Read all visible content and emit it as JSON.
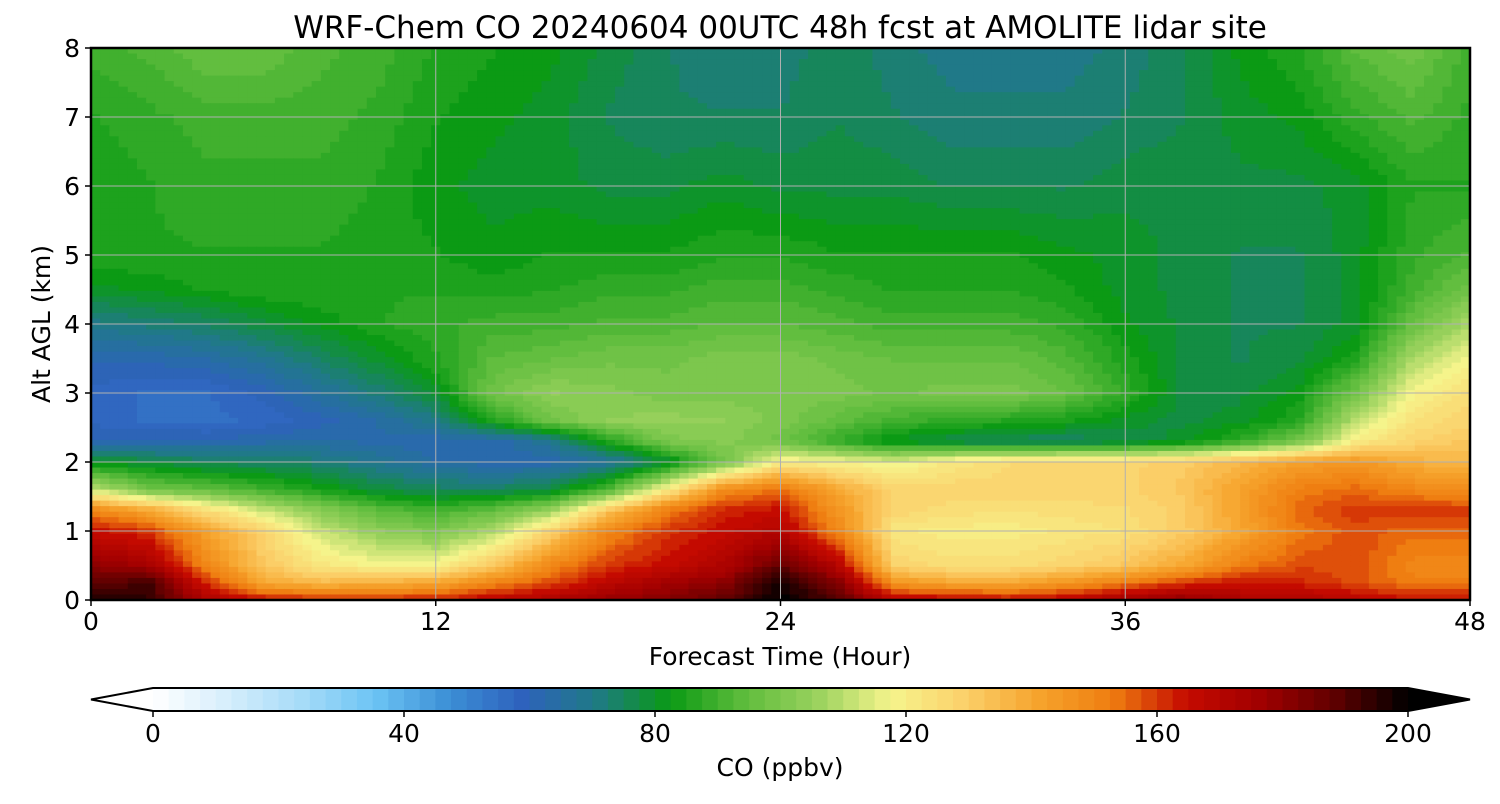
{
  "chart_data": {
    "type": "heatmap",
    "title": "WRF-Chem CO  20240604 00UTC 48h fcst at AMOLITE lidar site",
    "xlabel": "Forecast Time (Hour)",
    "ylabel": "Alt AGL (km)",
    "xlim": [
      0,
      48
    ],
    "ylim": [
      0,
      8
    ],
    "x_ticks": [
      0,
      12,
      24,
      36,
      48
    ],
    "y_ticks": [
      0,
      1,
      2,
      3,
      4,
      5,
      6,
      7,
      8
    ],
    "grid": true,
    "x": [
      0,
      2,
      4,
      6,
      8,
      10,
      12,
      14,
      16,
      18,
      20,
      22,
      24,
      26,
      28,
      30,
      32,
      34,
      36,
      38,
      40,
      42,
      44,
      46,
      48
    ],
    "y": [
      0,
      0.25,
      0.5,
      1,
      1.3,
      1.6,
      2,
      2.3,
      2.6,
      3,
      3.5,
      4,
      4.5,
      5,
      6,
      7,
      8
    ],
    "z": [
      [
        195,
        195,
        172,
        165,
        162,
        162,
        163,
        168,
        172,
        178,
        182,
        188,
        200,
        190,
        168,
        168,
        165,
        168,
        175,
        180,
        172,
        172,
        168,
        165,
        165
      ],
      [
        188,
        192,
        162,
        140,
        135,
        138,
        140,
        150,
        158,
        168,
        175,
        180,
        198,
        182,
        145,
        140,
        140,
        145,
        152,
        160,
        165,
        162,
        158,
        152,
        152
      ],
      [
        180,
        175,
        150,
        132,
        122,
        118,
        118,
        132,
        150,
        160,
        165,
        172,
        188,
        170,
        128,
        125,
        125,
        128,
        132,
        140,
        152,
        158,
        158,
        150,
        150
      ],
      [
        165,
        160,
        142,
        128,
        112,
        104,
        100,
        108,
        128,
        150,
        160,
        165,
        170,
        150,
        122,
        120,
        120,
        122,
        124,
        130,
        140,
        152,
        158,
        155,
        155
      ],
      [
        150,
        140,
        125,
        112,
        102,
        94,
        90,
        95,
        105,
        132,
        152,
        162,
        165,
        145,
        128,
        125,
        124,
        125,
        126,
        130,
        142,
        155,
        160,
        160,
        160
      ],
      [
        112,
        98,
        95,
        90,
        84,
        78,
        75,
        74,
        78,
        92,
        120,
        148,
        155,
        140,
        128,
        128,
        128,
        128,
        128,
        132,
        142,
        152,
        155,
        150,
        148
      ],
      [
        80,
        78,
        75,
        74,
        72,
        68,
        64,
        62,
        62,
        66,
        78,
        98,
        120,
        118,
        115,
        122,
        126,
        128,
        128,
        130,
        136,
        142,
        145,
        138,
        135
      ],
      [
        62,
        62,
        62,
        63,
        64,
        63,
        62,
        62,
        68,
        85,
        100,
        102,
        98,
        88,
        80,
        76,
        74,
        74,
        76,
        80,
        88,
        98,
        120,
        128,
        132
      ],
      [
        58,
        56,
        55,
        57,
        60,
        64,
        70,
        85,
        98,
        104,
        105,
        104,
        100,
        95,
        90,
        88,
        86,
        84,
        80,
        78,
        80,
        86,
        110,
        124,
        128
      ],
      [
        58,
        56,
        56,
        60,
        66,
        72,
        80,
        98,
        104,
        102,
        100,
        100,
        100,
        100,
        98,
        100,
        100,
        96,
        88,
        78,
        78,
        82,
        98,
        118,
        125
      ],
      [
        62,
        62,
        64,
        68,
        74,
        80,
        86,
        94,
        96,
        98,
        98,
        100,
        100,
        98,
        96,
        96,
        96,
        92,
        85,
        78,
        76,
        78,
        85,
        108,
        118
      ],
      [
        70,
        72,
        74,
        78,
        82,
        86,
        88,
        90,
        90,
        92,
        92,
        94,
        94,
        92,
        90,
        90,
        90,
        88,
        82,
        78,
        76,
        76,
        80,
        96,
        108
      ],
      [
        80,
        82,
        84,
        86,
        86,
        86,
        86,
        85,
        86,
        88,
        88,
        90,
        90,
        88,
        86,
        86,
        86,
        84,
        80,
        78,
        76,
        76,
        80,
        90,
        98
      ],
      [
        86,
        86,
        86,
        86,
        86,
        85,
        84,
        82,
        84,
        84,
        84,
        86,
        86,
        84,
        84,
        84,
        84,
        82,
        80,
        78,
        76,
        76,
        80,
        88,
        92
      ],
      [
        84,
        86,
        88,
        88,
        88,
        86,
        82,
        80,
        80,
        78,
        78,
        80,
        78,
        78,
        78,
        76,
        76,
        76,
        78,
        78,
        78,
        78,
        80,
        86,
        86
      ],
      [
        86,
        88,
        90,
        90,
        90,
        88,
        84,
        82,
        80,
        76,
        74,
        74,
        74,
        76,
        74,
        72,
        72,
        72,
        74,
        76,
        80,
        82,
        88,
        92,
        88
      ],
      [
        90,
        92,
        96,
        96,
        92,
        90,
        86,
        84,
        82,
        78,
        74,
        72,
        72,
        76,
        72,
        70,
        70,
        70,
        72,
        76,
        82,
        86,
        94,
        98,
        90
      ]
    ],
    "colorbar": {
      "label": "CO  (ppbv)",
      "ticks": [
        0,
        40,
        80,
        120,
        160,
        200
      ],
      "range": [
        0,
        200
      ],
      "extend": "both",
      "colors": [
        "#ffffff",
        "#d6eefc",
        "#a7dcf8",
        "#6cc4f4",
        "#3c8fd6",
        "#2e62bd",
        "#1f7a85",
        "#0a9a14",
        "#5ebc3c",
        "#9ad25e",
        "#f6f48c",
        "#fbd06a",
        "#f6a32c",
        "#ef7d10",
        "#c50a00",
        "#a00000",
        "#600000",
        "#000000"
      ]
    }
  }
}
